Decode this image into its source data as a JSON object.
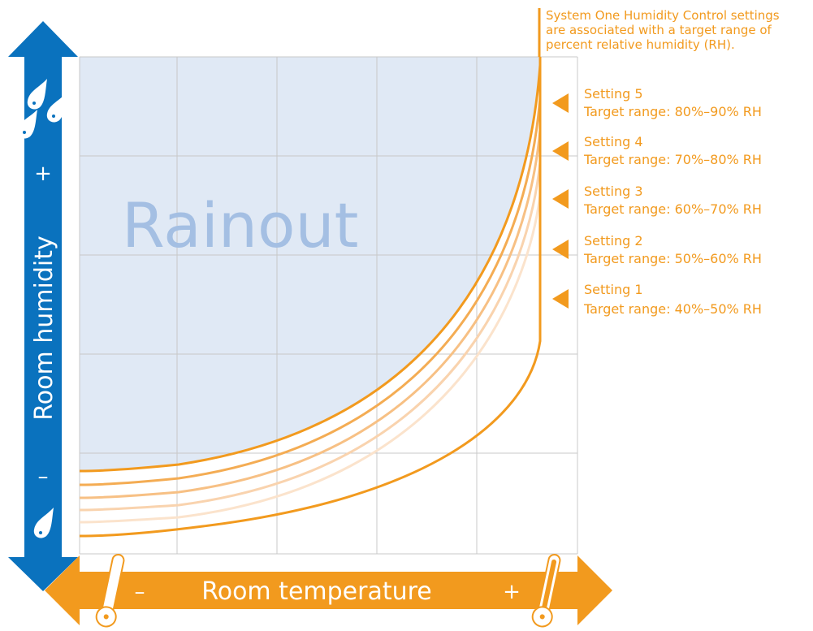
{
  "note": {
    "lines": [
      "System One Humidity Control settings",
      "are associated with a target range of",
      "percent relative humidity (RH)."
    ]
  },
  "region_label": "Rainout",
  "y_axis": {
    "title": "Room humidity",
    "plus": "+",
    "minus": "–"
  },
  "x_axis": {
    "title": "Room temperature",
    "plus": "+",
    "minus": "–"
  },
  "settings": [
    {
      "name": "Setting 5",
      "range": "Target range: 80%–90% RH"
    },
    {
      "name": "Setting 4",
      "range": "Target range: 70%–80% RH"
    },
    {
      "name": "Setting 3",
      "range": "Target range: 60%–70% RH"
    },
    {
      "name": "Setting 2",
      "range": "Target range: 50%–60% RH"
    },
    {
      "name": "Setting 1",
      "range": "Target range: 40%–50% RH"
    }
  ],
  "colors": {
    "accent_orange": "#f29a1e",
    "axis_blue": "#0a72be",
    "rainout_fill": "#e0e9f5",
    "rainout_text": "#a4bfe3",
    "grid": "#c8c8c8"
  },
  "icons": {
    "humidity_high": "water-droplets-icon",
    "humidity_low": "water-droplet-icon",
    "temp_low": "thermometer-low-icon",
    "temp_high": "thermometer-high-icon"
  }
}
